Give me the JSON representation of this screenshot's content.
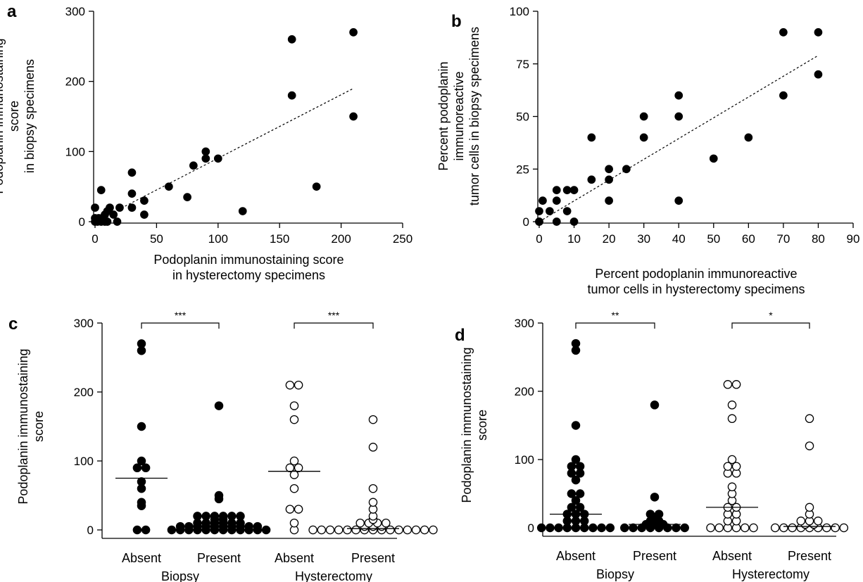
{
  "colors": {
    "ink": "#000000",
    "background": "#ffffff",
    "open_fill": "#ffffff"
  },
  "chart_data": [
    {
      "id": "a",
      "type": "scatter",
      "letter": "a",
      "xlabel": [
        "Podoplanin immunostaining score",
        "in hysterectomy specimens"
      ],
      "ylabel": [
        "Podoplanin immunostaining",
        "score",
        "in biopsy specimens"
      ],
      "xlim": [
        0,
        250
      ],
      "ylim": [
        0,
        300
      ],
      "xticks": [
        0,
        50,
        100,
        150,
        200,
        250
      ],
      "yticks": [
        0,
        100,
        200,
        300
      ],
      "trendline": {
        "style": "dashed",
        "from": [
          0,
          0
        ],
        "to": [
          210,
          190
        ]
      },
      "points": [
        [
          0,
          0
        ],
        [
          0,
          5
        ],
        [
          0,
          20
        ],
        [
          2,
          0
        ],
        [
          3,
          5
        ],
        [
          5,
          0
        ],
        [
          5,
          45
        ],
        [
          6,
          5
        ],
        [
          8,
          0
        ],
        [
          8,
          10
        ],
        [
          10,
          15
        ],
        [
          10,
          0
        ],
        [
          12,
          20
        ],
        [
          15,
          10
        ],
        [
          18,
          0
        ],
        [
          20,
          20
        ],
        [
          30,
          20
        ],
        [
          30,
          40
        ],
        [
          30,
          70
        ],
        [
          40,
          10
        ],
        [
          40,
          30
        ],
        [
          60,
          50
        ],
        [
          75,
          35
        ],
        [
          80,
          80
        ],
        [
          90,
          90
        ],
        [
          90,
          100
        ],
        [
          100,
          90
        ],
        [
          120,
          15
        ],
        [
          160,
          180
        ],
        [
          160,
          260
        ],
        [
          180,
          50
        ],
        [
          210,
          150
        ],
        [
          210,
          270
        ]
      ]
    },
    {
      "id": "b",
      "type": "scatter",
      "letter": "b",
      "xlabel": [
        "Percent podoplanin immunoreactive",
        "tumor cells in hysterectomy specimens"
      ],
      "ylabel": [
        "Percent podoplanin",
        "immunoreactive",
        "tumor cells in biopsy specimens"
      ],
      "xlim": [
        0,
        90
      ],
      "ylim": [
        0,
        100
      ],
      "xticks": [
        0,
        10,
        20,
        30,
        40,
        50,
        60,
        70,
        80,
        90
      ],
      "yticks": [
        0,
        25,
        50,
        75,
        100
      ],
      "trendline": {
        "style": "dashed",
        "from": [
          0,
          0
        ],
        "to": [
          80,
          79
        ]
      },
      "points": [
        [
          0,
          0
        ],
        [
          0,
          5
        ],
        [
          0,
          0
        ],
        [
          1,
          10
        ],
        [
          3,
          5
        ],
        [
          5,
          10
        ],
        [
          5,
          15
        ],
        [
          5,
          0
        ],
        [
          8,
          5
        ],
        [
          8,
          15
        ],
        [
          10,
          15
        ],
        [
          10,
          0
        ],
        [
          15,
          20
        ],
        [
          15,
          40
        ],
        [
          20,
          10
        ],
        [
          20,
          20
        ],
        [
          20,
          25
        ],
        [
          25,
          25
        ],
        [
          30,
          40
        ],
        [
          30,
          50
        ],
        [
          40,
          50
        ],
        [
          40,
          60
        ],
        [
          40,
          10
        ],
        [
          50,
          30
        ],
        [
          60,
          40
        ],
        [
          70,
          60
        ],
        [
          70,
          90
        ],
        [
          80,
          70
        ],
        [
          80,
          90
        ]
      ]
    },
    {
      "id": "c",
      "type": "scatter",
      "letter": "c",
      "ylabel": [
        "Podoplanin immunostaining",
        "score"
      ],
      "ylim": [
        0,
        300
      ],
      "yticks": [
        0,
        100,
        200,
        300
      ],
      "category_labels": [
        "Absent",
        "Present",
        "Absent",
        "Present"
      ],
      "group_labels": [
        "Biopsy",
        "Hysterectomy"
      ],
      "significance": [
        "***",
        "***"
      ],
      "series": [
        {
          "name": "Biopsy Absent",
          "filled": true,
          "median": 75,
          "values": [
            0,
            0,
            35,
            40,
            60,
            70,
            90,
            90,
            100,
            150,
            260,
            270
          ]
        },
        {
          "name": "Biopsy Present",
          "filled": true,
          "median": 5,
          "values": [
            0,
            0,
            0,
            0,
            0,
            0,
            0,
            0,
            0,
            0,
            0,
            0,
            5,
            5,
            5,
            5,
            5,
            5,
            5,
            5,
            5,
            5,
            10,
            10,
            10,
            10,
            10,
            10,
            15,
            15,
            20,
            20,
            20,
            20,
            20,
            20,
            45,
            50,
            180
          ]
        },
        {
          "name": "Hysterectomy Absent",
          "filled": false,
          "median": 85,
          "values": [
            0,
            10,
            30,
            30,
            60,
            80,
            90,
            90,
            100,
            160,
            180,
            210,
            210
          ]
        },
        {
          "name": "Hysterectomy Present",
          "filled": false,
          "median": 2,
          "values": [
            0,
            0,
            0,
            0,
            0,
            0,
            0,
            0,
            0,
            0,
            0,
            0,
            0,
            0,
            0,
            5,
            5,
            5,
            10,
            10,
            10,
            10,
            15,
            20,
            30,
            40,
            60,
            120,
            160
          ]
        }
      ]
    },
    {
      "id": "d",
      "type": "scatter",
      "letter": "d",
      "ylabel": [
        "Podoplanin immunostaining",
        "score"
      ],
      "ylim": [
        0,
        300
      ],
      "yticks": [
        0,
        100,
        200,
        300
      ],
      "category_labels": [
        "Absent",
        "Present",
        "Absent",
        "Present"
      ],
      "group_labels": [
        "Biopsy",
        "Hysterectomy"
      ],
      "significance": [
        "**",
        "*"
      ],
      "series": [
        {
          "name": "Biopsy Absent",
          "filled": true,
          "median": 20,
          "values": [
            0,
            0,
            0,
            0,
            0,
            0,
            0,
            0,
            0,
            10,
            10,
            10,
            20,
            20,
            20,
            30,
            30,
            40,
            50,
            50,
            70,
            80,
            80,
            90,
            90,
            100,
            150,
            260,
            270
          ]
        },
        {
          "name": "Biopsy Present",
          "filled": true,
          "median": 5,
          "values": [
            0,
            0,
            0,
            0,
            0,
            0,
            0,
            0,
            5,
            5,
            5,
            10,
            10,
            15,
            20,
            20,
            45,
            180
          ]
        },
        {
          "name": "Hysterectomy Absent",
          "filled": false,
          "median": 30,
          "values": [
            0,
            0,
            0,
            0,
            0,
            0,
            10,
            10,
            20,
            20,
            30,
            30,
            40,
            50,
            60,
            80,
            80,
            90,
            90,
            100,
            160,
            180,
            210,
            210
          ]
        },
        {
          "name": "Hysterectomy Present",
          "filled": false,
          "median": 2,
          "values": [
            0,
            0,
            0,
            0,
            0,
            0,
            0,
            0,
            0,
            5,
            5,
            10,
            10,
            10,
            20,
            30,
            120,
            160
          ]
        }
      ]
    }
  ]
}
